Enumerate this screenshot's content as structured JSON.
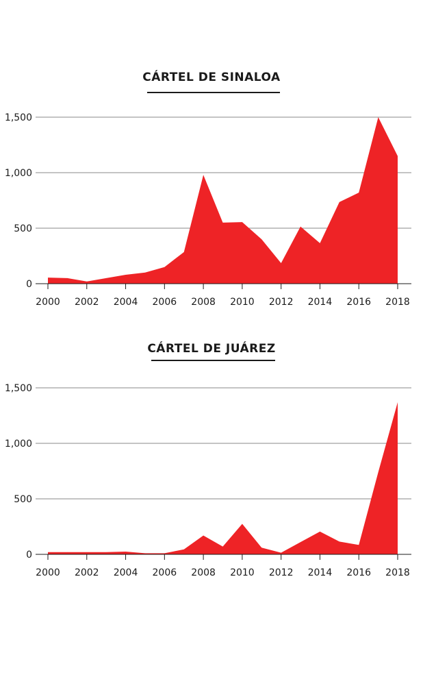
{
  "colors": {
    "area": "#ee2326",
    "grid": "#8a8a8a",
    "axis": "#1a1a1a",
    "text": "#1a1a1a"
  },
  "chart_data": [
    {
      "type": "area",
      "title": "CÁRTEL DE SINALOA",
      "xlabel": "",
      "ylabel": "",
      "xlim": [
        2000,
        2018
      ],
      "ylim": [
        0,
        1500
      ],
      "grid": true,
      "legend": "none",
      "x_ticks": [
        "2000",
        "2002",
        "2004",
        "2006",
        "2008",
        "2010",
        "2012",
        "2014",
        "2016",
        "2018"
      ],
      "y_ticks": [
        "0",
        "500",
        "1,000",
        "1,500"
      ],
      "x": [
        2000,
        2001,
        2002,
        2003,
        2004,
        2005,
        2006,
        2007,
        2008,
        2009,
        2010,
        2011,
        2012,
        2013,
        2014,
        2015,
        2016,
        2017,
        2018
      ],
      "values": [
        55,
        50,
        20,
        50,
        80,
        100,
        150,
        285,
        980,
        550,
        555,
        400,
        185,
        515,
        365,
        735,
        820,
        1500,
        1150
      ]
    },
    {
      "type": "area",
      "title": "CÁRTEL DE JUÁREZ",
      "xlabel": "",
      "ylabel": "",
      "xlim": [
        2000,
        2018
      ],
      "ylim": [
        0,
        1500
      ],
      "grid": true,
      "legend": "none",
      "x_ticks": [
        "2000",
        "2002",
        "2004",
        "2006",
        "2008",
        "2010",
        "2012",
        "2014",
        "2016",
        "2018"
      ],
      "y_ticks": [
        "0",
        "500",
        "1,000",
        "1,500"
      ],
      "x": [
        2000,
        2001,
        2002,
        2003,
        2004,
        2005,
        2006,
        2007,
        2008,
        2009,
        2010,
        2011,
        2012,
        2013,
        2014,
        2015,
        2016,
        2017,
        2018
      ],
      "values": [
        20,
        20,
        20,
        20,
        25,
        10,
        10,
        45,
        170,
        70,
        275,
        60,
        15,
        110,
        205,
        115,
        85,
        740,
        1370
      ]
    }
  ]
}
